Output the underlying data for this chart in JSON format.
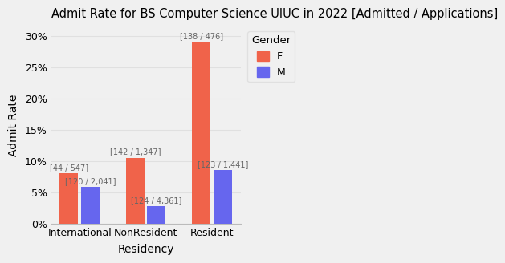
{
  "title": "Admit Rate for BS Computer Science UIUC in 2022 [Admitted / Applications]",
  "xlabel": "Residency",
  "ylabel": "Admit Rate",
  "categories": [
    "International",
    "NonResident",
    "Resident"
  ],
  "F_values": [
    0.0804,
    0.1054,
    0.2899
  ],
  "M_values": [
    0.0588,
    0.0284,
    0.0854
  ],
  "F_labels": [
    "[44 / 547]",
    "[142 / 1,347]",
    "[138 / 476]"
  ],
  "M_labels": [
    "[120 / 2,041]",
    "[124 / 4,361]",
    "[123 / 1,441]"
  ],
  "F_color": "#f0634a",
  "M_color": "#6666ee",
  "bar_width": 0.28,
  "ylim": [
    0,
    0.315
  ],
  "yticks": [
    0.0,
    0.05,
    0.1,
    0.15,
    0.2,
    0.25,
    0.3
  ],
  "ytick_labels": [
    "0%",
    "5%",
    "10%",
    "15%",
    "20%",
    "25%",
    "30%"
  ],
  "background_color": "#f0f0f0",
  "plot_bg_color": "#f0f0f0",
  "grid_color": "#e0e0e0",
  "legend_title": "Gender",
  "title_fontsize": 10.5,
  "axis_label_fontsize": 10,
  "tick_fontsize": 9,
  "bar_label_fontsize": 7,
  "bar_gap": 0.04
}
